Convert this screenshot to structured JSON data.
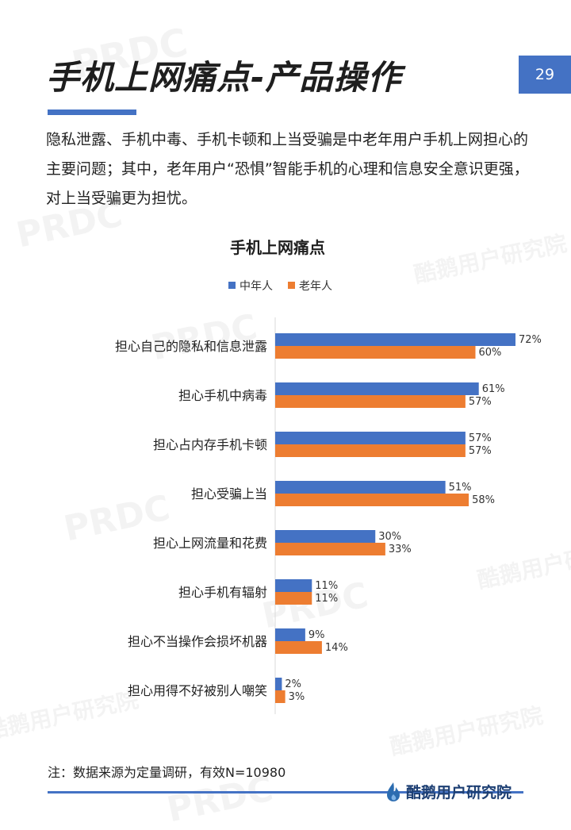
{
  "page": {
    "title": "手机上网痛点-产品操作",
    "page_number": "29",
    "description": "隐私泄露、手机中毒、手机卡顿和上当受骗是中老年用户手机上网担心的主要问题；其中，老年用户“恐惧”智能手机的心理和信息安全意识更强，对上当受骗更为担忧。",
    "footnote": "注：数据来源为定量调研，有效N=10980",
    "brand": "酷鹅用户研究院",
    "watermarks": [
      "PRDC",
      "酷鹅用户研究院"
    ]
  },
  "colors": {
    "accent": "#4472c4",
    "series_middle_aged": "#4472c4",
    "series_elderly": "#ed7d31",
    "brand_text": "#1d3f73"
  },
  "chart_data": {
    "type": "bar",
    "orientation": "horizontal",
    "title": "手机上网痛点",
    "legend_position": "top",
    "categories": [
      "担心自己的隐私和信息泄露",
      "担心手机中病毒",
      "担心占内存手机卡顿",
      "担心受骗上当",
      "担心上网流量和花费",
      "担心手机有辐射",
      "担心不当操作会损坏机器",
      "担心用得不好被别人嘲笑"
    ],
    "series": [
      {
        "name": "中年人",
        "values": [
          72,
          61,
          57,
          51,
          30,
          11,
          9,
          2
        ],
        "labels": [
          "72%",
          "61%",
          "57%",
          "51%",
          "30%",
          "11%",
          "9%",
          "2%"
        ]
      },
      {
        "name": "老年人",
        "values": [
          60,
          57,
          57,
          58,
          33,
          11,
          14,
          3
        ],
        "labels": [
          "60%",
          "57%",
          "57%",
          "58%",
          "33%",
          "11%",
          "14%",
          "3%"
        ]
      }
    ],
    "unit": "%",
    "xlim": [
      0,
      72
    ],
    "grid": false
  }
}
